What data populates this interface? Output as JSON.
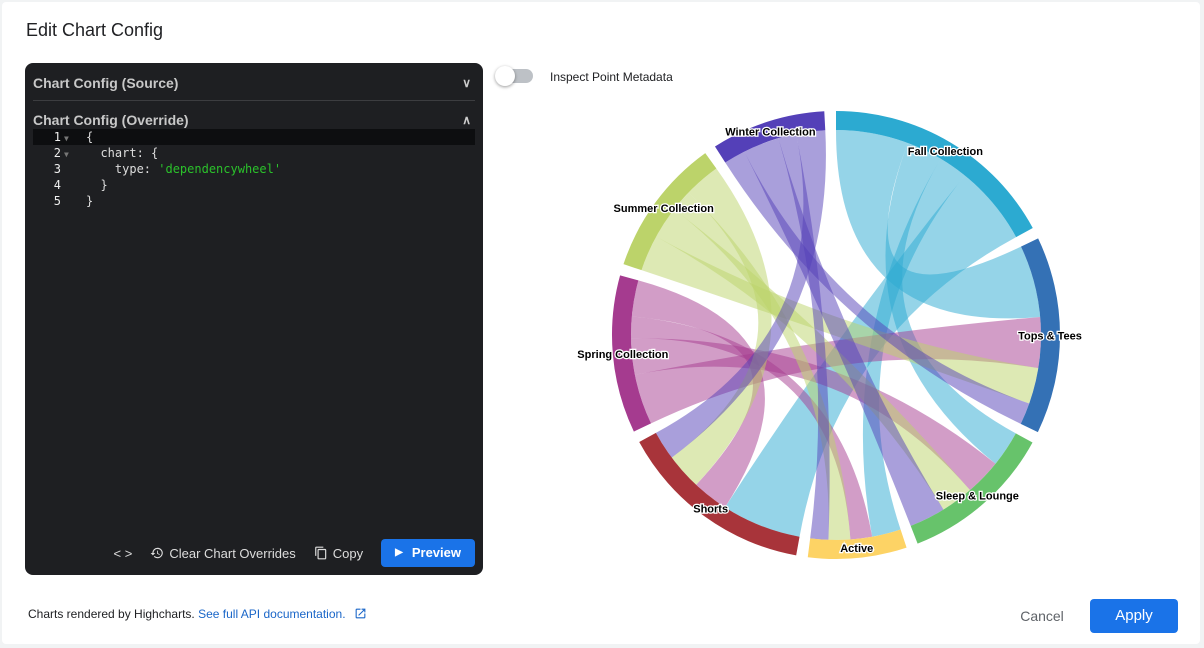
{
  "dialog": {
    "title": "Edit Chart Config",
    "editor": {
      "source_label": "Chart Config (Source)",
      "override_label": "Chart Config (Override)",
      "code_lines": [
        {
          "n": "1",
          "pre": "{",
          "str": "",
          "post": ""
        },
        {
          "n": "2",
          "pre": "  chart: {",
          "str": "",
          "post": ""
        },
        {
          "n": "3",
          "pre": "    type: ",
          "str": "'dependencywheel'",
          "post": ""
        },
        {
          "n": "4",
          "pre": "  }",
          "str": "",
          "post": ""
        },
        {
          "n": "5",
          "pre": "}",
          "str": "",
          "post": ""
        }
      ],
      "toolbar": {
        "format_icon": "code-brackets-icon",
        "clear_label": "Clear Chart Overrides",
        "copy_label": "Copy",
        "preview_label": "Preview"
      }
    },
    "toggle": {
      "label": "Inspect Point Metadata",
      "on": false
    },
    "footer": {
      "text": "Charts rendered by Highcharts.",
      "link": "See full API documentation."
    },
    "cancel_label": "Cancel",
    "apply_label": "Apply",
    "accent": "#1a73e8"
  },
  "chart_data": {
    "type": "dependencywheel",
    "nodes": [
      {
        "name": "Fall Collection",
        "color": "#2caad1"
      },
      {
        "name": "Tops & Tees",
        "color": "#3471b5"
      },
      {
        "name": "Sleep & Lounge",
        "color": "#67c36b"
      },
      {
        "name": "Active",
        "color": "#fdd365"
      },
      {
        "name": "Shorts",
        "color": "#a8343a"
      },
      {
        "name": "Spring Collection",
        "color": "#a53b8f"
      },
      {
        "name": "Summer Collection",
        "color": "#bcd36a"
      },
      {
        "name": "Winter Collection",
        "color": "#5440b8"
      }
    ],
    "links": [
      {
        "from": "Fall Collection",
        "to": "Tops & Tees",
        "weight": 20
      },
      {
        "from": "Fall Collection",
        "to": "Sleep & Lounge",
        "weight": 10
      },
      {
        "from": "Fall Collection",
        "to": "Active",
        "weight": 8
      },
      {
        "from": "Fall Collection",
        "to": "Shorts",
        "weight": 22
      },
      {
        "from": "Spring Collection",
        "to": "Tops & Tees",
        "weight": 14
      },
      {
        "from": "Spring Collection",
        "to": "Sleep & Lounge",
        "weight": 10
      },
      {
        "from": "Spring Collection",
        "to": "Active",
        "weight": 6
      },
      {
        "from": "Spring Collection",
        "to": "Shorts",
        "weight": 10
      },
      {
        "from": "Summer Collection",
        "to": "Tops & Tees",
        "weight": 10
      },
      {
        "from": "Summer Collection",
        "to": "Sleep & Lounge",
        "weight": 9
      },
      {
        "from": "Summer Collection",
        "to": "Active",
        "weight": 6
      },
      {
        "from": "Summer Collection",
        "to": "Shorts",
        "weight": 10
      },
      {
        "from": "Winter Collection",
        "to": "Tops & Tees",
        "weight": 6
      },
      {
        "from": "Winter Collection",
        "to": "Sleep & Lounge",
        "weight": 10
      },
      {
        "from": "Winter Collection",
        "to": "Active",
        "weight": 5
      },
      {
        "from": "Winter Collection",
        "to": "Shorts",
        "weight": 8
      }
    ]
  }
}
